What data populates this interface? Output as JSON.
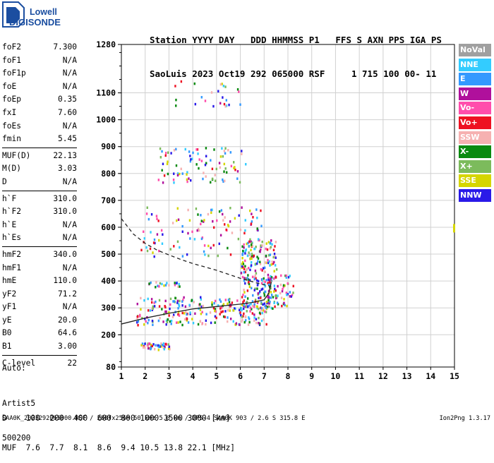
{
  "logo": {
    "line1": "Lowell",
    "line2": "DIGISONDE"
  },
  "header": {
    "row1": "Station YYYY DAY   DDD HHMMSS P1   FFS S AXN PPS IGA PS",
    "row2": "SaoLuis 2023 Oct19 292 065000 RSF     1 715 100 00- 11"
  },
  "params": {
    "group1": [
      {
        "label": "foF2",
        "value": "7.300"
      },
      {
        "label": "foF1",
        "value": "N/A"
      },
      {
        "label": "foF1p",
        "value": "N/A"
      },
      {
        "label": "foE",
        "value": "N/A"
      },
      {
        "label": "foEp",
        "value": "0.35"
      },
      {
        "label": "fxI",
        "value": "7.60"
      },
      {
        "label": "foEs",
        "value": "N/A"
      },
      {
        "label": "fmin",
        "value": "5.45"
      }
    ],
    "group2": [
      {
        "label": "MUF(D)",
        "value": "22.13"
      },
      {
        "label": "M(D)",
        "value": "3.03"
      },
      {
        "label": "D",
        "value": "N/A"
      }
    ],
    "group3": [
      {
        "label": "h`F",
        "value": "310.0"
      },
      {
        "label": "h`F2",
        "value": "310.0"
      },
      {
        "label": "h`E",
        "value": "N/A"
      },
      {
        "label": "h`Es",
        "value": "N/A"
      }
    ],
    "group4": [
      {
        "label": "hmF2",
        "value": "340.0"
      },
      {
        "label": "hmF1",
        "value": "N/A"
      },
      {
        "label": "hmE",
        "value": "110.0"
      },
      {
        "label": "yF2",
        "value": "71.2"
      },
      {
        "label": "yF1",
        "value": "N/A"
      },
      {
        "label": "yE",
        "value": "20.0"
      },
      {
        "label": "B0",
        "value": "64.6"
      },
      {
        "label": "B1",
        "value": "3.00"
      }
    ],
    "group5": [
      {
        "label": "C-level",
        "value": "22"
      }
    ]
  },
  "auto": {
    "line1": "Auto:",
    "line2": "Artist5",
    "line3": "500200"
  },
  "muf_table": {
    "row1": "D    100  200  400  600  800 1000 1500 3000 [km]",
    "row2": "MUF  7.6  7.7  8.1  8.6  9.4 10.5 13.8 22.1 [MHz]"
  },
  "footer": {
    "left": "SAA0K_2023292065000.RSF / 280fx256h 50 kHz 5.0 km / DPS-4 SAA0K 903 / 2.6 S 315.8 E",
    "right": "Ion2Png 1.3.17"
  },
  "legend": [
    {
      "label": "NoVal",
      "color": "#a0a0a0"
    },
    {
      "label": "NNE",
      "color": "#33ccff"
    },
    {
      "label": "E",
      "color": "#3399ff"
    },
    {
      "label": "W",
      "color": "#b0109c"
    },
    {
      "label": "Vo-",
      "color": "#ff4dac"
    },
    {
      "label": "Vo+",
      "color": "#ee1122"
    },
    {
      "label": "SSW",
      "color": "#f6b1b1"
    },
    {
      "label": "X-",
      "color": "#0a8a10"
    },
    {
      "label": "X+",
      "color": "#7cbb5c"
    },
    {
      "label": "SSE",
      "color": "#d6d600"
    },
    {
      "label": "NNW",
      "color": "#2a1ae8"
    }
  ],
  "chart_data": {
    "type": "scatter",
    "xlim": [
      1,
      15
    ],
    "ylim": [
      80,
      1280
    ],
    "xticks": [
      1,
      2,
      3,
      4,
      5,
      6,
      7,
      8,
      9,
      10,
      11,
      12,
      13,
      14,
      15
    ],
    "yticks": [
      80,
      200,
      300,
      400,
      500,
      600,
      700,
      800,
      900,
      1000,
      1100,
      1280
    ],
    "grid": true,
    "traces": [
      {
        "name": "O-trace F2",
        "color": "#222222",
        "x": [
          1.0,
          2.0,
          3.0,
          4.0,
          5.0,
          6.0,
          6.5,
          7.0,
          7.2,
          7.3
        ],
        "y": [
          240,
          262,
          280,
          296,
          305,
          314,
          320,
          330,
          355,
          395
        ]
      },
      {
        "name": "profile",
        "color": "#222222",
        "dash": true,
        "x": [
          1.0,
          1.5,
          2.0,
          2.5,
          3.0,
          3.5,
          4.0,
          5.0,
          6.0,
          6.8,
          7.3
        ],
        "y": [
          632,
          575,
          540,
          515,
          497,
          480,
          465,
          440,
          410,
          390,
          380
        ]
      }
    ],
    "echo_clusters": [
      {
        "x0": 1.6,
        "x1": 7.2,
        "y0": 240,
        "y1": 345,
        "n": 260
      },
      {
        "x0": 6.0,
        "x1": 7.5,
        "y0": 300,
        "y1": 560,
        "n": 220
      },
      {
        "x0": 7.0,
        "x1": 8.2,
        "y0": 310,
        "y1": 430,
        "n": 60
      },
      {
        "x0": 1.8,
        "x1": 7.0,
        "y0": 495,
        "y1": 680,
        "n": 120
      },
      {
        "x0": 2.5,
        "x1": 6.2,
        "y0": 770,
        "y1": 900,
        "n": 90
      },
      {
        "x0": 3.0,
        "x1": 6.0,
        "y0": 1050,
        "y1": 1150,
        "n": 25
      },
      {
        "x0": 1.8,
        "x1": 3.0,
        "y0": 148,
        "y1": 172,
        "n": 50
      },
      {
        "x0": 2.0,
        "x1": 3.5,
        "y0": 380,
        "y1": 400,
        "n": 20
      }
    ]
  }
}
